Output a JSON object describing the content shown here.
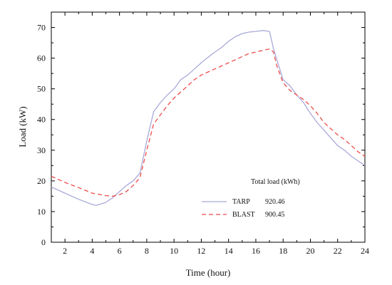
{
  "chart_data": {
    "type": "line",
    "xlabel": "Time (hour)",
    "ylabel": "Load (kW)",
    "xlim": [
      1,
      24
    ],
    "ylim": [
      0,
      75
    ],
    "xticks": [
      2,
      4,
      6,
      8,
      10,
      12,
      14,
      16,
      18,
      20,
      22,
      24
    ],
    "yticks": [
      0,
      10,
      20,
      30,
      40,
      50,
      60,
      70
    ],
    "grid": false,
    "legend_title": "Total  load (kWh)",
    "legend_placement": "lower-right",
    "series": [
      {
        "name": "TARP",
        "total": "920.46",
        "color": "#a9a9d9",
        "style": "solid",
        "x": [
          1,
          2,
          3,
          4,
          4.3,
          5,
          5.5,
          6,
          6.5,
          7,
          7.5,
          8,
          8.5,
          9,
          9.5,
          10,
          10.5,
          11,
          11.5,
          12,
          12.5,
          13,
          13.5,
          14,
          14.5,
          15,
          15.5,
          16,
          16.5,
          17,
          17.3,
          17.5,
          18,
          18.5,
          19,
          19.5,
          20,
          20.5,
          21,
          21.5,
          22,
          22.5,
          23,
          23.5,
          24
        ],
        "y": [
          18,
          16,
          14,
          12.3,
          12,
          13,
          14.5,
          16.5,
          18.5,
          20,
          22.5,
          33,
          42.5,
          45.5,
          48,
          50,
          53,
          54.5,
          56.5,
          58.5,
          60.3,
          62,
          63.5,
          65.5,
          67,
          68,
          68.5,
          68.7,
          69,
          68.7,
          63,
          60,
          53,
          51,
          48,
          45.5,
          42,
          39,
          36.5,
          34,
          31.5,
          30,
          28,
          26.5,
          25
        ]
      },
      {
        "name": "BLAST",
        "total": "900.45",
        "color": "#ee4b4b",
        "style": "dashed",
        "x": [
          1,
          2,
          3,
          4,
          5,
          5.5,
          6,
          6.5,
          7,
          7.5,
          8,
          8.5,
          9,
          9.5,
          10,
          10.5,
          11,
          11.5,
          12,
          12.5,
          13,
          13.5,
          14,
          14.5,
          15,
          15.5,
          16,
          16.5,
          17,
          17.3,
          17.5,
          18,
          18.5,
          19,
          19.5,
          20,
          20.5,
          21,
          21.5,
          22,
          22.5,
          23,
          23.5,
          24
        ],
        "y": [
          21.5,
          19.5,
          17.8,
          16,
          15.2,
          15,
          15.5,
          16.5,
          18.5,
          21,
          30,
          38.5,
          41.5,
          44.5,
          47,
          49,
          51,
          53,
          54.5,
          55.5,
          56.5,
          57.5,
          58.5,
          59.5,
          60.5,
          61.5,
          62,
          62.5,
          63,
          62,
          58,
          52,
          49.5,
          48,
          46.5,
          44.5,
          42,
          39,
          37,
          35,
          33.5,
          31.5,
          29.5,
          28
        ]
      }
    ]
  }
}
